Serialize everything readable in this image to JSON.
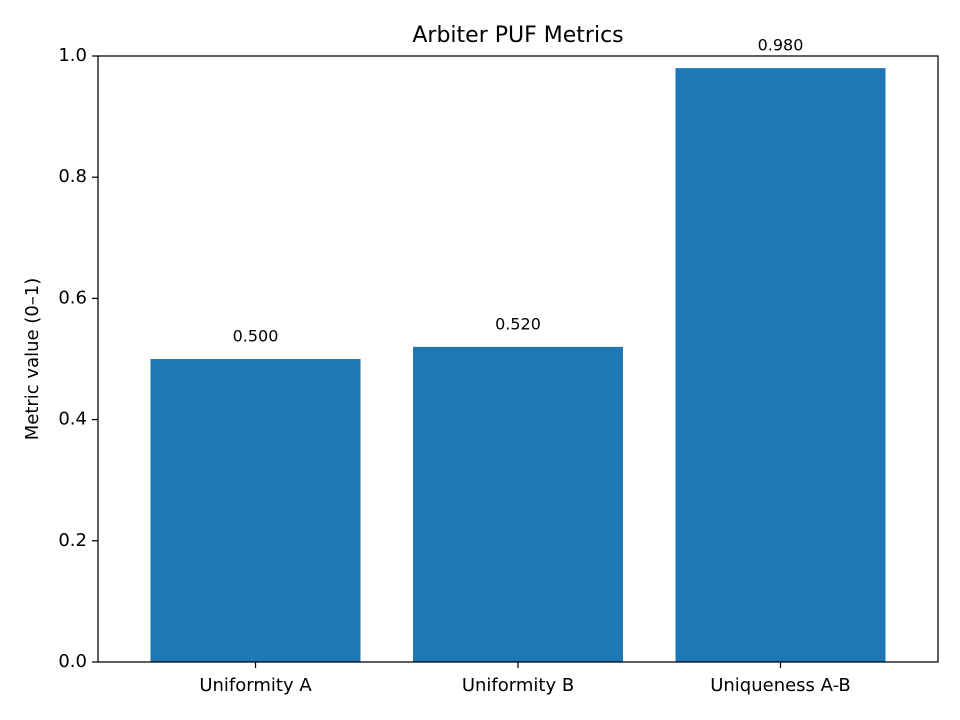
{
  "chart_data": {
    "type": "bar",
    "title": "Arbiter PUF Metrics",
    "xlabel": "",
    "ylabel": "Metric value (0–1)",
    "categories": [
      "Uniformity A",
      "Uniformity B",
      "Uniqueness A-B"
    ],
    "values": [
      0.5,
      0.52,
      0.98
    ],
    "data_labels": [
      "0.500",
      "0.520",
      "0.980"
    ],
    "ylim": [
      0,
      1.0
    ],
    "yticks": [
      0.0,
      0.2,
      0.4,
      0.6,
      0.8,
      1.0
    ],
    "ytick_labels": [
      "0.0",
      "0.2",
      "0.4",
      "0.6",
      "0.8",
      "1.0"
    ],
    "bar_color": "#1f77b4",
    "grid": false,
    "legend": "none"
  }
}
